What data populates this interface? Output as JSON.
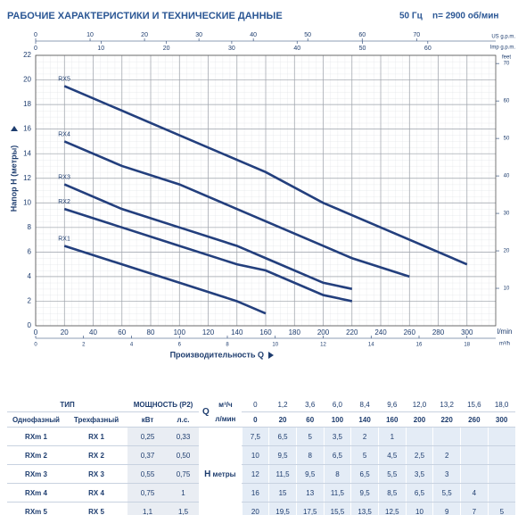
{
  "chart_data": {
    "type": "line",
    "title": "РАБОЧИЕ ХАРАКТЕРИСТИКИ И ТЕХНИЧЕСКИЕ ДАННЫЕ",
    "frequency": "50 Гц",
    "speed": "n= 2900 об/мин",
    "y_label": "Напор H (метры)",
    "x_label": "Производительность Q",
    "x_unit": "l/min",
    "x2_unit": "m³/h",
    "x3_unit": "US g.p.m.",
    "x4_unit": "Imp g.p.m.",
    "y2_unit": "feet",
    "xlim": [
      0,
      320
    ],
    "xticks": [
      0,
      20,
      40,
      60,
      80,
      100,
      120,
      140,
      160,
      180,
      200,
      220,
      240,
      260,
      280,
      300
    ],
    "x2lim": [
      0,
      19.2
    ],
    "x2ticks": [
      0,
      2,
      4,
      6,
      8,
      10,
      12,
      14,
      16,
      18
    ],
    "x3lim": [
      0,
      84.54
    ],
    "x3ticks": [
      0,
      10,
      20,
      30,
      40,
      50,
      60,
      70
    ],
    "x4lim": [
      0,
      70.39
    ],
    "x4ticks": [
      0,
      10,
      20,
      30,
      40,
      50,
      60
    ],
    "ylim": [
      0,
      22
    ],
    "yticks": [
      0,
      2,
      4,
      6,
      8,
      10,
      12,
      14,
      16,
      18,
      20,
      22
    ],
    "y2lim": [
      0,
      72.18
    ],
    "y2ticks": [
      10,
      20,
      30,
      40,
      50,
      60,
      70
    ],
    "grid": true,
    "series": [
      {
        "name": "RX5",
        "color": "#233f7d",
        "x": [
          20,
          60,
          100,
          140,
          160,
          200,
          220,
          260,
          300
        ],
        "values": [
          19.5,
          17.5,
          15.5,
          13.5,
          12.5,
          10,
          9,
          7,
          5
        ]
      },
      {
        "name": "RX4",
        "color": "#233f7d",
        "x": [
          20,
          60,
          100,
          140,
          160,
          200,
          220,
          260
        ],
        "values": [
          15,
          13,
          11.5,
          9.5,
          8.5,
          6.5,
          5.5,
          4
        ]
      },
      {
        "name": "RX3",
        "color": "#233f7d",
        "x": [
          20,
          60,
          100,
          140,
          160,
          200,
          220
        ],
        "values": [
          11.5,
          9.5,
          8,
          6.5,
          5.5,
          3.5,
          3
        ]
      },
      {
        "name": "RX2",
        "color": "#233f7d",
        "x": [
          20,
          60,
          100,
          140,
          160,
          200,
          220
        ],
        "values": [
          9.5,
          8,
          6.5,
          5,
          4.5,
          2.5,
          2
        ]
      },
      {
        "name": "RX1",
        "color": "#233f7d",
        "x": [
          20,
          60,
          100,
          140,
          160
        ],
        "values": [
          6.5,
          5,
          3.5,
          2,
          1
        ]
      }
    ]
  },
  "table": {
    "header": {
      "type": "ТИП",
      "power": "МОЩНОСТЬ (P2)",
      "q": "Q",
      "q_unit_m3h": "м³/ч",
      "q_unit_lmin": "л/мин",
      "single": "Однофазный",
      "three": "Трехфазный",
      "kw": "кВт",
      "hp": "л.с.",
      "h": "H",
      "h_unit": "метры"
    },
    "q_m3h": [
      "0",
      "1,2",
      "3,6",
      "6,0",
      "8,4",
      "9,6",
      "12,0",
      "13,2",
      "15,6",
      "18,0"
    ],
    "q_lmin": [
      "0",
      "20",
      "60",
      "100",
      "140",
      "160",
      "200",
      "220",
      "260",
      "300"
    ],
    "rows": [
      {
        "single": "RXm 1",
        "three": "RX 1",
        "kw": "0,25",
        "hp": "0,33",
        "h": [
          "7,5",
          "6,5",
          "5",
          "3,5",
          "2",
          "1"
        ]
      },
      {
        "single": "RXm 2",
        "three": "RX 2",
        "kw": "0,37",
        "hp": "0,50",
        "h": [
          "10",
          "9,5",
          "8",
          "6,5",
          "5",
          "4,5",
          "2,5",
          "2"
        ]
      },
      {
        "single": "RXm 3",
        "three": "RX 3",
        "kw": "0,55",
        "hp": "0,75",
        "h": [
          "12",
          "11,5",
          "9,5",
          "8",
          "6,5",
          "5,5",
          "3,5",
          "3"
        ]
      },
      {
        "single": "RXm 4",
        "three": "RX 4",
        "kw": "0,75",
        "hp": "1",
        "h": [
          "16",
          "15",
          "13",
          "11,5",
          "9,5",
          "8,5",
          "6,5",
          "5,5",
          "4"
        ]
      },
      {
        "single": "RXm 5",
        "three": "RX 5",
        "kw": "1,1",
        "hp": "1,5",
        "h": [
          "20",
          "19,5",
          "17,5",
          "15,5",
          "13,5",
          "12,5",
          "10",
          "9",
          "7",
          "5"
        ]
      }
    ]
  }
}
